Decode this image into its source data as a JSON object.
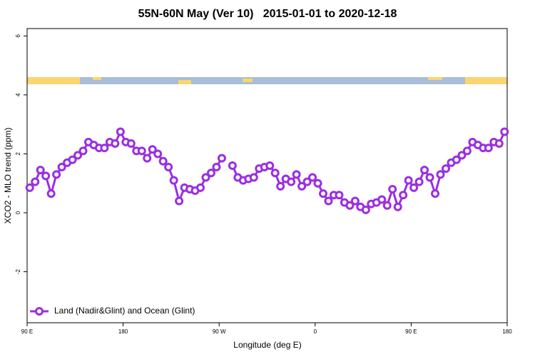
{
  "chart_data": {
    "type": "line",
    "title": "55N-60N May (Ver 10)   2015-01-01 to 2020-12-18",
    "x_label": "Longitude (deg E)",
    "y_label": "XCO2 - MLO trend (ppm)",
    "xlim": [
      90,
      540
    ],
    "xticks": [
      {
        "value": 90,
        "label": "90 E"
      },
      180,
      {
        "value": 270,
        "label": "90 W"
      },
      {
        "value": 360,
        "label": "0"
      },
      {
        "value": 450,
        "label": "90 E"
      },
      {
        "value": 540,
        "label": "180"
      }
    ],
    "ylim": [
      -3.73,
      6.25
    ],
    "yticks": [
      6,
      4,
      2,
      0,
      -2
    ],
    "legend": "bottom-left",
    "x": [
      92.5,
      97.5,
      102.5,
      107.5,
      112.5,
      117.5,
      122.5,
      127.5,
      132.5,
      137.5,
      142.5,
      147.5,
      152.5,
      157.5,
      162.5,
      167.5,
      172.5,
      177.5,
      182.5,
      187.5,
      192.5,
      197.5,
      202.5,
      207.5,
      212.5,
      217.5,
      222.5,
      227.5,
      232.5,
      237.5,
      242.5,
      247.5,
      252.5,
      257.5,
      262.5,
      267.5,
      272.5,
      277.5,
      282.5,
      287.5,
      292.5,
      297.5,
      302.5,
      307.5,
      312.5,
      317.5,
      322.5,
      327.5,
      332.5,
      337.5,
      342.5,
      347.5,
      352.5,
      357.5,
      362.5,
      367.5,
      372.5,
      377.5,
      382.5,
      387.5,
      392.5,
      397.5,
      402.5,
      407.5,
      412.5,
      417.5,
      422.5,
      427.5,
      432.5,
      437.5,
      442.5,
      447.5,
      452.5,
      457.5,
      462.5,
      467.5,
      472.5,
      477.5,
      482.5,
      487.5,
      492.5,
      497.5,
      502.5,
      507.5,
      512.5,
      517.5,
      522.5,
      527.5,
      532.5,
      537.5
    ],
    "series": [
      {
        "name": "Land (Nadir&Glint) and Ocean (Glint)",
        "color": "#9b2fe0",
        "values": [
          0.85,
          1.05,
          1.45,
          1.25,
          0.65,
          1.3,
          1.55,
          1.7,
          1.8,
          1.95,
          2.1,
          2.4,
          2.3,
          2.2,
          2.2,
          2.4,
          2.35,
          2.75,
          2.4,
          2.35,
          2.1,
          2.1,
          1.85,
          2.15,
          2.0,
          1.75,
          1.55,
          1.1,
          0.4,
          0.85,
          0.8,
          0.75,
          0.85,
          1.2,
          1.35,
          1.55,
          1.85,
          null,
          1.6,
          1.2,
          1.1,
          1.15,
          1.2,
          1.5,
          1.55,
          1.6,
          1.35,
          0.9,
          1.15,
          1.05,
          1.3,
          0.9,
          1.05,
          1.2,
          1.0,
          0.65,
          0.4,
          0.6,
          0.6,
          0.35,
          0.25,
          0.4,
          0.2,
          0.1,
          0.3,
          0.35,
          0.45,
          0.25,
          0.8,
          0.2,
          0.6,
          1.1,
          0.85,
          1.05,
          1.45,
          1.2,
          0.65,
          1.3,
          1.5,
          1.7,
          1.8,
          1.95,
          2.1,
          2.4,
          2.3,
          2.2,
          2.2,
          2.4,
          2.35,
          2.75
        ]
      }
    ]
  }
}
